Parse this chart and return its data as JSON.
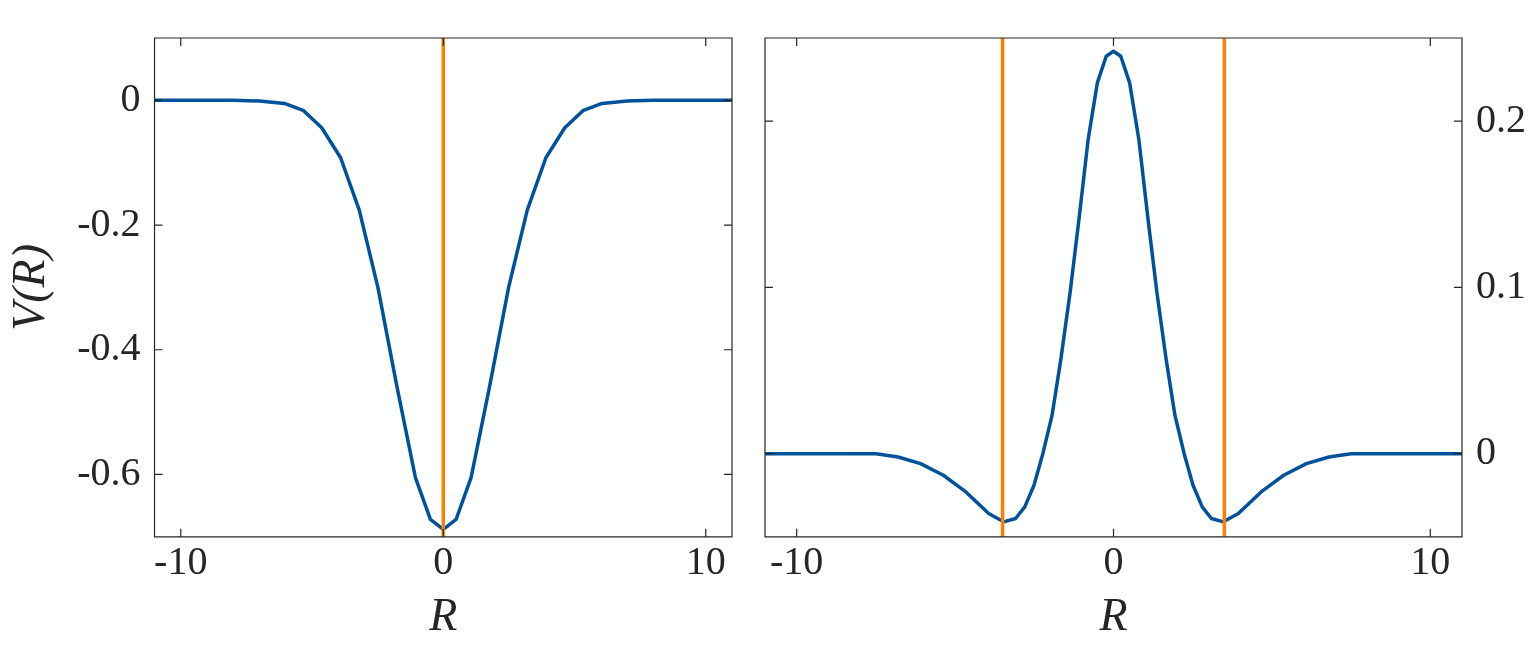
{
  "chart_data": [
    {
      "type": "line",
      "xlabel": "R",
      "ylabel": "V(R)",
      "xlim": [
        -11,
        11
      ],
      "xticks": [
        -10,
        0,
        10
      ],
      "ylim": [
        -0.7,
        0.1
      ],
      "yticks": [
        -0.6,
        -0.4,
        -0.2,
        0
      ],
      "grid": false,
      "legend": false,
      "marker": "none",
      "line_style": "solid",
      "series": [
        {
          "color": "#00529b",
          "x": [
            -11,
            -8,
            -7,
            -6.05,
            -5.34,
            -4.63,
            -3.91,
            -3.2,
            -2.49,
            -1.77,
            -1.06,
            -0.49,
            0,
            0.49,
            1.06,
            1.77,
            2.49,
            3.2,
            3.91,
            4.63,
            5.34,
            6.05,
            7,
            8,
            11
          ],
          "values": [
            0,
            0,
            -0.001,
            -0.005,
            -0.016,
            -0.044,
            -0.092,
            -0.176,
            -0.3,
            -0.458,
            -0.605,
            -0.672,
            -0.688,
            -0.672,
            -0.605,
            -0.458,
            -0.3,
            -0.176,
            -0.092,
            -0.044,
            -0.016,
            -0.005,
            -0.001,
            0,
            0
          ]
        }
      ],
      "ref_lines": [
        {
          "axis": "x",
          "value": 0,
          "color": "#ff8000"
        }
      ]
    },
    {
      "type": "line",
      "xlabel": "R",
      "xlim": [
        -11,
        11
      ],
      "xticks": [
        -10,
        0,
        10
      ],
      "y2lim": [
        -0.05,
        0.25
      ],
      "y2ticks": [
        0,
        0.1,
        0.2
      ],
      "grid": false,
      "legend": false,
      "marker": "none",
      "line_style": "solid",
      "series": [
        {
          "color": "#00529b",
          "axis": "y2",
          "x": [
            -11,
            -7.5,
            -6.8,
            -6.09,
            -5.37,
            -4.66,
            -3.94,
            -3.47,
            -3.09,
            -2.8,
            -2.51,
            -2.23,
            -1.94,
            -1.66,
            -1.37,
            -1.09,
            -0.8,
            -0.51,
            -0.23,
            0,
            0.23,
            0.51,
            0.8,
            1.09,
            1.37,
            1.66,
            1.94,
            2.23,
            2.51,
            2.8,
            3.09,
            3.47,
            3.94,
            4.66,
            5.37,
            6.09,
            6.8,
            7.5,
            11
          ],
          "values": [
            0,
            0,
            -0.002,
            -0.006,
            -0.013,
            -0.023,
            -0.036,
            -0.041,
            -0.039,
            -0.032,
            -0.019,
            0,
            0.023,
            0.057,
            0.097,
            0.141,
            0.189,
            0.223,
            0.239,
            0.242,
            0.239,
            0.223,
            0.189,
            0.141,
            0.097,
            0.057,
            0.023,
            0,
            -0.019,
            -0.032,
            -0.039,
            -0.041,
            -0.036,
            -0.023,
            -0.013,
            -0.006,
            -0.002,
            0,
            0
          ]
        }
      ],
      "ref_lines": [
        {
          "axis": "x",
          "value": -3.5,
          "color": "#ff8000"
        },
        {
          "axis": "x",
          "value": 3.5,
          "color": "#ff8000"
        }
      ]
    }
  ]
}
